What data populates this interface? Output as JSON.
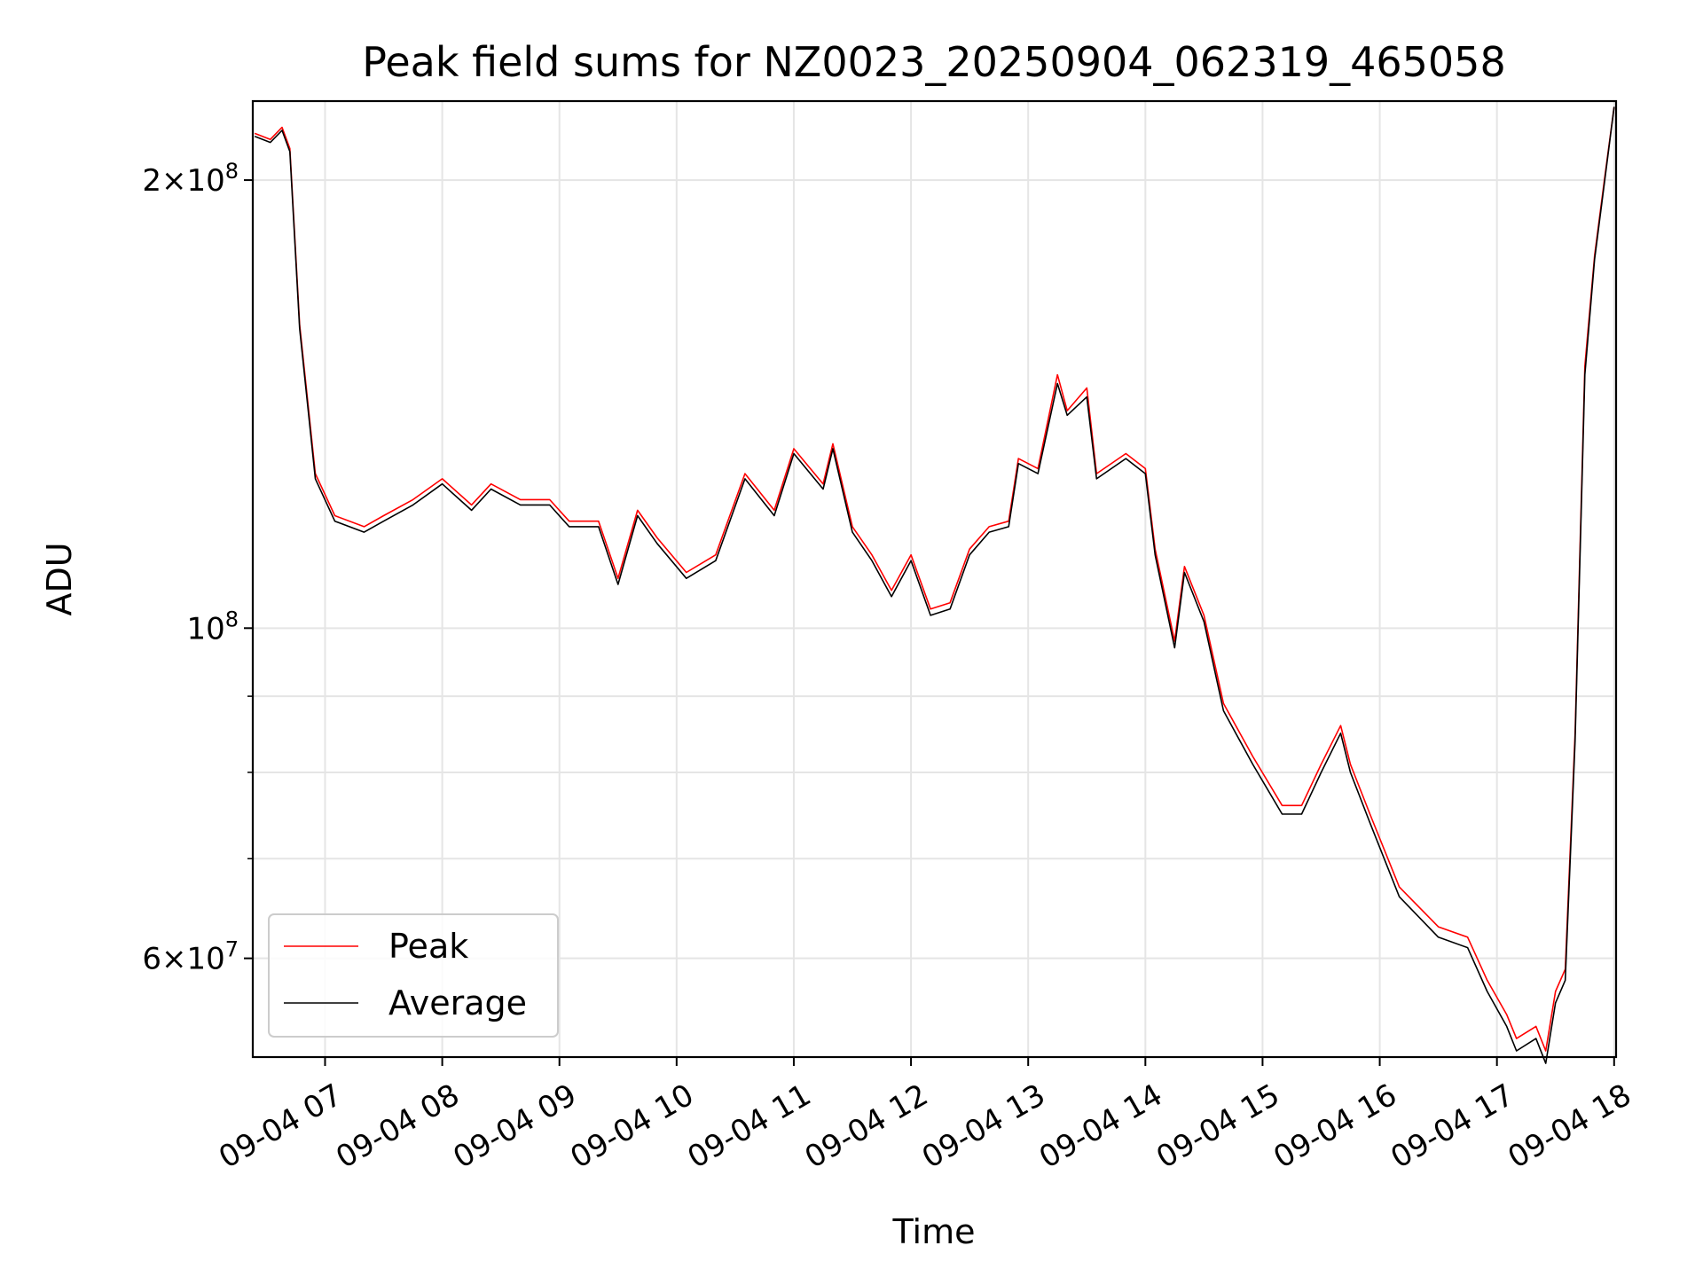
{
  "chart_data": {
    "type": "line",
    "title": "Peak field sums for NZ0023_20250904_062319_465058",
    "xlabel": "Time",
    "ylabel": "ADU",
    "x_scale": "time",
    "y_scale": "log",
    "xlim": [
      "2025-09-04T06:23",
      "2025-09-04T18:01"
    ],
    "ylim": [
      51500000,
      226000000
    ],
    "grid": true,
    "legend_position": "lower left",
    "x_ticks": [
      "09-04 07",
      "09-04 08",
      "09-04 09",
      "09-04 10",
      "09-04 11",
      "09-04 12",
      "09-04 13",
      "09-04 14",
      "09-04 15",
      "09-04 16",
      "09-04 17",
      "09-04 18"
    ],
    "y_ticks": [
      {
        "value": 200000000,
        "mantissa": "2",
        "exponent": "8"
      },
      {
        "value": 100000000,
        "mantissa": "",
        "exponent": "8"
      },
      {
        "value": 60000000,
        "mantissa": "6",
        "exponent": "7"
      }
    ],
    "y_minor_ticks": [
      70000000,
      80000000,
      90000000
    ],
    "x": [
      "06:24",
      "06:32",
      "06:38",
      "06:42",
      "06:47",
      "06:55",
      "07:05",
      "07:20",
      "07:30",
      "07:45",
      "08:00",
      "08:15",
      "08:25",
      "08:40",
      "08:55",
      "09:05",
      "09:20",
      "09:30",
      "09:40",
      "09:50",
      "10:05",
      "10:20",
      "10:35",
      "10:50",
      "11:00",
      "11:15",
      "11:20",
      "11:30",
      "11:40",
      "11:50",
      "12:00",
      "12:10",
      "12:20",
      "12:30",
      "12:40",
      "12:50",
      "12:55",
      "13:05",
      "13:15",
      "13:20",
      "13:30",
      "13:35",
      "13:50",
      "14:00",
      "14:05",
      "14:15",
      "14:20",
      "14:30",
      "14:40",
      "14:55",
      "15:10",
      "15:20",
      "15:30",
      "15:40",
      "15:45",
      "15:55",
      "16:10",
      "16:30",
      "16:45",
      "16:55",
      "17:05",
      "17:10",
      "17:20",
      "17:25",
      "17:30",
      "17:35",
      "17:40",
      "17:45",
      "17:50",
      "17:55",
      "18:00"
    ],
    "series": [
      {
        "name": "Peak",
        "color": "#ff0000",
        "values": [
          215,
          213,
          217,
          210,
          160,
          127,
          119,
          117,
          119,
          122,
          126,
          121,
          125,
          122,
          122,
          118,
          118,
          108,
          120,
          115,
          109,
          112,
          127,
          120,
          132,
          125,
          133,
          117,
          112,
          106,
          112,
          103,
          104,
          113,
          117,
          118,
          130,
          128,
          148,
          140,
          145,
          127,
          131,
          128,
          113,
          98,
          110,
          102,
          89,
          82,
          76,
          76,
          81,
          86,
          81,
          75,
          67,
          63,
          62,
          58,
          55,
          53,
          54,
          52,
          57,
          59,
          85,
          150,
          178,
          200,
          224
        ]
      },
      {
        "name": "Average",
        "color": "#000000",
        "values": [
          214,
          212,
          216,
          209,
          159,
          126,
          118,
          116,
          118,
          121,
          125,
          120,
          124,
          121,
          121,
          117,
          117,
          107,
          119,
          114,
          108,
          111,
          126,
          119,
          131,
          124,
          132,
          116,
          111,
          105,
          111,
          102,
          103,
          112,
          116,
          117,
          129,
          127,
          146,
          139,
          143,
          126,
          130,
          127,
          112,
          97,
          109,
          101,
          88,
          81,
          75,
          75,
          80,
          85,
          80,
          74,
          66,
          62,
          61,
          57,
          54,
          52,
          53,
          51,
          56,
          58,
          84,
          148,
          177,
          199,
          224
        ]
      }
    ],
    "value_unit_multiplier": 1000000
  }
}
